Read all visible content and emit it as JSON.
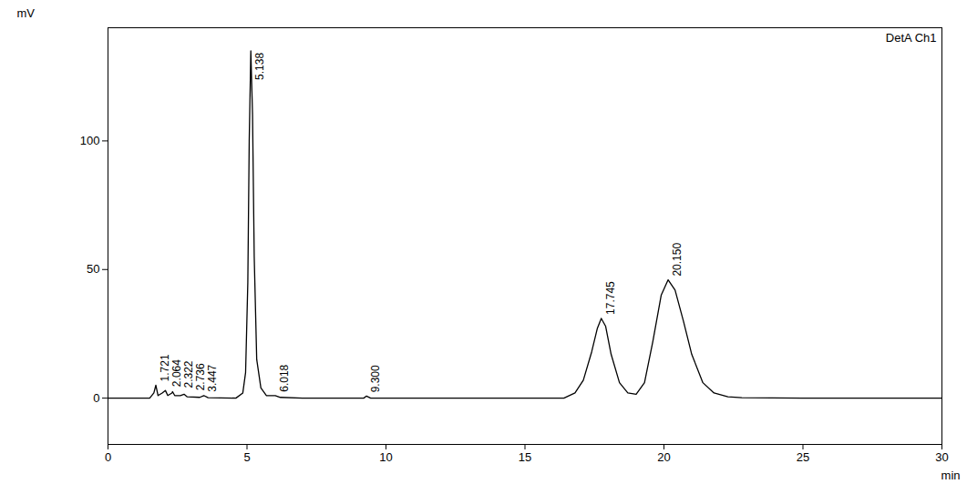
{
  "chart_data": {
    "type": "line",
    "x_label": "min",
    "y_label": "mV",
    "xlim": [
      0,
      30
    ],
    "ylim": [
      -18,
      144
    ],
    "xticks": [
      0,
      5,
      10,
      15,
      20,
      25,
      30
    ],
    "yticks": [
      0,
      50,
      100
    ],
    "grid": false,
    "legend": "top-right",
    "x": [
      0,
      1.5,
      1.65,
      1.721,
      1.8,
      1.95,
      2.064,
      2.15,
      2.3,
      2.322,
      2.4,
      2.6,
      2.736,
      2.85,
      3.3,
      3.447,
      3.6,
      4.6,
      4.85,
      4.95,
      5.03,
      5.08,
      5.138,
      5.2,
      5.26,
      5.35,
      5.5,
      5.7,
      6.018,
      6.2,
      7,
      9.2,
      9.3,
      9.45,
      12,
      16.4,
      16.8,
      17.1,
      17.4,
      17.6,
      17.745,
      17.9,
      18.1,
      18.4,
      18.7,
      19.0,
      19.3,
      19.6,
      19.9,
      20.15,
      20.4,
      20.7,
      21.0,
      21.4,
      21.8,
      22.3,
      22.8,
      25,
      30
    ],
    "series": [
      {
        "name": "DetA Ch1",
        "color": "#000000",
        "values": [
          0,
          0,
          2,
          5,
          1,
          2,
          3,
          1,
          2,
          2.5,
          1,
          1,
          1.5,
          0.5,
          0.3,
          1,
          0.2,
          0,
          2,
          10,
          45,
          100,
          135,
          110,
          55,
          15,
          4,
          1,
          1,
          0.3,
          0,
          0,
          0.8,
          0,
          0,
          0,
          2,
          7,
          18,
          27,
          31,
          28,
          17,
          6,
          2,
          1.5,
          6,
          22,
          40,
          46,
          42,
          30,
          17,
          6,
          2,
          0.5,
          0.2,
          0,
          0
        ]
      }
    ],
    "annotations": [
      {
        "x": 1.721,
        "y": 5,
        "text": "1.721"
      },
      {
        "x": 2.064,
        "y": 3,
        "text": "2.064"
      },
      {
        "x": 2.322,
        "y": 2.5,
        "text": "2.322"
      },
      {
        "x": 2.736,
        "y": 1.5,
        "text": "2.736"
      },
      {
        "x": 3.447,
        "y": 1,
        "text": "3.447"
      },
      {
        "x": 5.138,
        "y": 135,
        "text": "5.138"
      },
      {
        "x": 6.018,
        "y": 1,
        "text": "6.018"
      },
      {
        "x": 9.3,
        "y": 0.8,
        "text": "9.300"
      },
      {
        "x": 17.745,
        "y": 31,
        "text": "17.745"
      },
      {
        "x": 20.15,
        "y": 46,
        "text": "20.150"
      }
    ]
  }
}
